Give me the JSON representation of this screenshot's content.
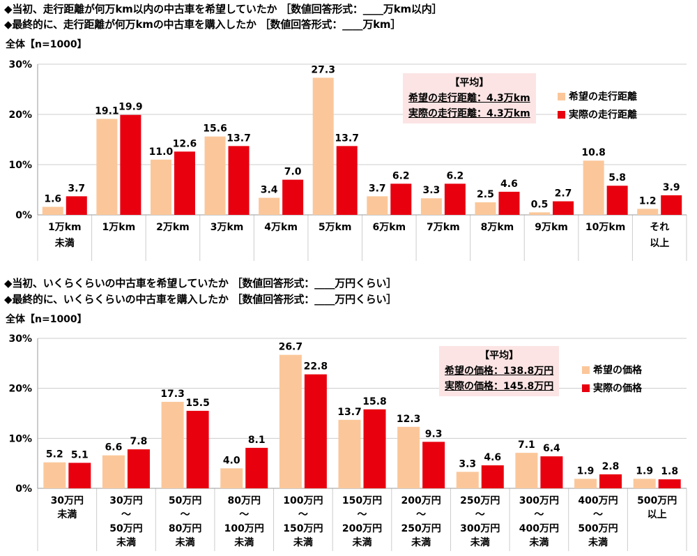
{
  "colors": {
    "hope": "#fbc79a",
    "actual": "#e8000f",
    "grid": "#cccccc",
    "box": "#fce4e4"
  },
  "section1": {
    "header_line1": "◆当初、走行距離が何万km以内の中古車を希望していたか ［数値回答形式：____万km以内］",
    "header_line2": "◆最終的に、走行距離が何万kmの中古車を購入したか ［数値回答形式：____万km］",
    "base": "全体【n=1000】",
    "avg_title": "【平均】",
    "avg_line1": "希望の走行距離：4.3万km",
    "avg_line2": "実際の走行距離：4.3万km"
  },
  "section2": {
    "header_line1": "◆当初、いくらくらいの中古車を希望していたか ［数値回答形式：____万円くらい］",
    "header_line2": "◆最終的に、いくらくらいの中古車を購入したか ［数値回答形式：____万円くらい］",
    "base": "全体【n=1000】",
    "avg_title": "【平均】",
    "avg_line1": "希望の価格：138.8万円",
    "avg_line2": "実際の価格：145.8万円"
  },
  "chart_data": [
    {
      "type": "bar",
      "categories": [
        [
          "1万km",
          "未満"
        ],
        [
          "1万km"
        ],
        [
          "2万km"
        ],
        [
          "3万km"
        ],
        [
          "4万km"
        ],
        [
          "5万km"
        ],
        [
          "6万km"
        ],
        [
          "7万km"
        ],
        [
          "8万km"
        ],
        [
          "9万km"
        ],
        [
          "10万km"
        ],
        [
          "それ",
          "以上"
        ]
      ],
      "series": [
        {
          "name": "希望の走行距離",
          "values": [
            1.6,
            19.1,
            11.0,
            15.6,
            3.4,
            27.3,
            3.7,
            3.3,
            2.5,
            0.5,
            10.8,
            1.2
          ]
        },
        {
          "name": "実際の走行距離",
          "values": [
            3.7,
            19.9,
            12.6,
            13.7,
            7.0,
            13.7,
            6.2,
            6.2,
            4.6,
            2.7,
            5.8,
            3.9
          ]
        }
      ],
      "yticks": [
        "0%",
        "10%",
        "20%",
        "30%"
      ],
      "ylim": [
        0,
        30
      ],
      "grid": true,
      "legend": "top-right"
    },
    {
      "type": "bar",
      "categories": [
        [
          "30万円",
          "未満"
        ],
        [
          "30万円",
          "～",
          "50万円",
          "未満"
        ],
        [
          "50万円",
          "～",
          "80万円",
          "未満"
        ],
        [
          "80万円",
          "～",
          "100万円",
          "未満"
        ],
        [
          "100万円",
          "～",
          "150万円",
          "未満"
        ],
        [
          "150万円",
          "～",
          "200万円",
          "未満"
        ],
        [
          "200万円",
          "～",
          "250万円",
          "未満"
        ],
        [
          "250万円",
          "～",
          "300万円",
          "未満"
        ],
        [
          "300万円",
          "～",
          "400万円",
          "未満"
        ],
        [
          "400万円",
          "～",
          "500万円",
          "未満"
        ],
        [
          "500万円",
          "以上"
        ]
      ],
      "series": [
        {
          "name": "希望の価格",
          "values": [
            5.2,
            6.6,
            17.3,
            4.0,
            26.7,
            13.7,
            12.3,
            3.3,
            7.1,
            1.9,
            1.9
          ]
        },
        {
          "name": "実際の価格",
          "values": [
            5.1,
            7.8,
            15.5,
            8.1,
            22.8,
            15.8,
            9.3,
            4.6,
            6.4,
            2.8,
            1.8
          ]
        }
      ],
      "yticks": [
        "0%",
        "10%",
        "20%",
        "30%"
      ],
      "ylim": [
        0,
        30
      ],
      "grid": true,
      "legend": "top-right"
    }
  ]
}
